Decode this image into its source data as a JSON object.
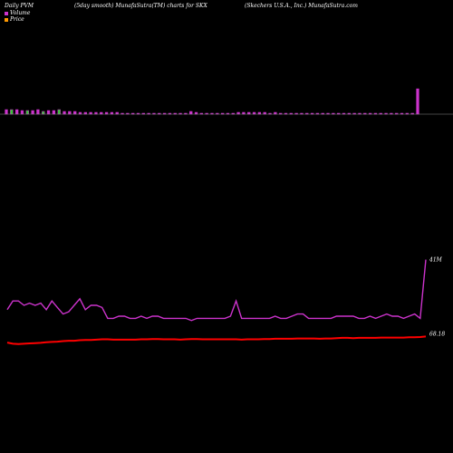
{
  "header": {
    "left": "Daily PVM",
    "center": "(5day smooth) MunafaSutra(TM) charts for SKX",
    "right": "(Skechers U.S.A., Inc.) MunafaSutra.com"
  },
  "legend": [
    {
      "label": "Volume",
      "color": "#cc33cc"
    },
    {
      "label": "Price",
      "color": "#ff9900"
    }
  ],
  "colors": {
    "background": "#000000",
    "volume_bar": "#cc33cc",
    "volume_bar_alt": "#33cc33",
    "volume_line": "#cc33cc",
    "price_line": "#ff0000",
    "baseline": "#888888"
  },
  "chart_data": {
    "type": "bar",
    "title": "",
    "series": [
      {
        "name": "Volume",
        "type": "bar",
        "values": [
          5,
          5,
          5,
          4,
          4,
          4,
          5,
          3,
          4,
          4,
          5,
          3,
          3,
          3,
          2,
          2,
          2,
          2,
          2,
          2,
          2,
          2,
          1,
          1,
          1,
          1,
          1,
          1,
          1,
          1,
          1,
          1,
          1,
          1,
          1,
          3,
          2,
          1,
          1,
          1,
          1,
          1,
          1,
          1,
          2,
          2,
          2,
          2,
          2,
          2,
          1,
          2,
          1,
          1,
          1,
          1,
          1,
          1,
          1,
          1,
          1,
          1,
          1,
          1,
          1,
          1,
          1,
          1,
          1,
          1,
          1,
          1,
          1,
          1,
          1,
          1,
          1,
          1,
          28
        ]
      },
      {
        "name": "Volume",
        "type": "line",
        "values": [
          18,
          22,
          22,
          20,
          21,
          20,
          21,
          18,
          22,
          19,
          16,
          17,
          20,
          23,
          18,
          20,
          20,
          19,
          14,
          14,
          15,
          15,
          14,
          14,
          15,
          14,
          15,
          15,
          14,
          14,
          14,
          14,
          14,
          13,
          14,
          14,
          14,
          14,
          14,
          14,
          15,
          22,
          14,
          14,
          14,
          14,
          14,
          14,
          15,
          14,
          14,
          15,
          16,
          16,
          14,
          14,
          14,
          14,
          14,
          15,
          15,
          15,
          15,
          14,
          14,
          15,
          14,
          15,
          16,
          15,
          15,
          14,
          15,
          16,
          14,
          41
        ]
      },
      {
        "name": "Price",
        "type": "line",
        "values": [
          66.1,
          65.7,
          65.6,
          65.7,
          65.8,
          65.9,
          66.0,
          66.2,
          66.3,
          66.4,
          66.6,
          66.7,
          66.7,
          66.9,
          67.0,
          67.0,
          67.1,
          67.2,
          67.2,
          67.1,
          67.1,
          67.1,
          67.1,
          67.1,
          67.2,
          67.2,
          67.3,
          67.3,
          67.2,
          67.2,
          67.2,
          67.1,
          67.2,
          67.3,
          67.3,
          67.2,
          67.2,
          67.2,
          67.2,
          67.2,
          67.2,
          67.2,
          67.1,
          67.2,
          67.2,
          67.2,
          67.3,
          67.3,
          67.4,
          67.4,
          67.4,
          67.4,
          67.5,
          67.5,
          67.5,
          67.5,
          67.4,
          67.5,
          67.5,
          67.6,
          67.7,
          67.7,
          67.6,
          67.7,
          67.7,
          67.7,
          67.7,
          67.8,
          67.8,
          67.8,
          67.8,
          67.8,
          67.9,
          67.9,
          68.0,
          68.18
        ]
      }
    ],
    "annotations": {
      "volume_last_label": "41M",
      "price_last_label": "68.18"
    },
    "legend_position": "top-left",
    "grid": false
  }
}
